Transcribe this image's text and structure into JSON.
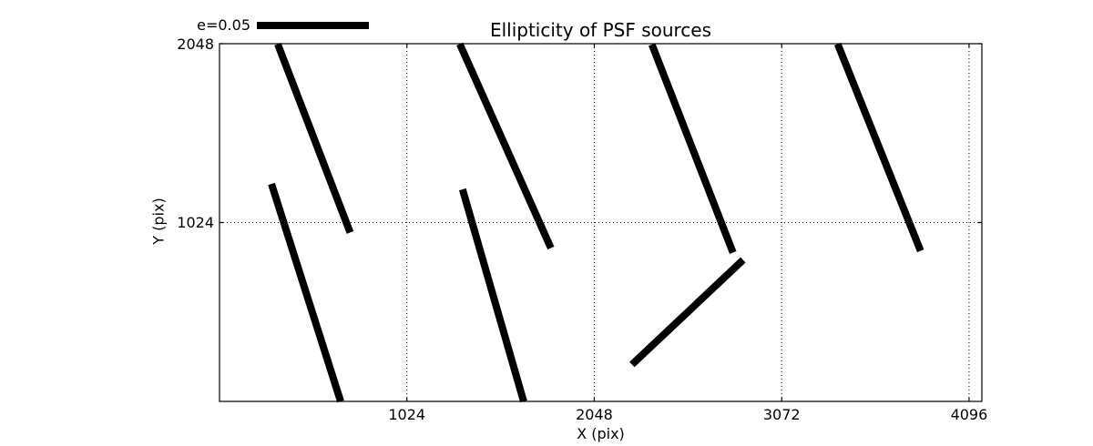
{
  "chart_data": {
    "type": "quiver",
    "title": "Ellipticity of PSF sources",
    "xlabel": "X (pix)",
    "ylabel": "Y (pix)",
    "xlim": [
      0,
      4166
    ],
    "ylim": [
      0,
      2048
    ],
    "xticks": [
      1024,
      2048,
      3072,
      4096
    ],
    "yticks": [
      1024,
      2048
    ],
    "grid": "dotted",
    "legend": {
      "label": "e=0.05",
      "position": "upper-left-outside"
    },
    "colors": {
      "foreground": "#000000",
      "background": "#ffffff"
    },
    "segments": [
      {
        "x1": 318,
        "y1": 2046,
        "x2": 714,
        "y2": 967
      },
      {
        "x1": 284,
        "y1": 1245,
        "x2": 662,
        "y2": 0
      },
      {
        "x1": 1313,
        "y1": 2046,
        "x2": 1811,
        "y2": 878
      },
      {
        "x1": 1328,
        "y1": 1214,
        "x2": 1662,
        "y2": 0
      },
      {
        "x1": 2363,
        "y1": 2043,
        "x2": 2806,
        "y2": 852
      },
      {
        "x1": 2254,
        "y1": 211,
        "x2": 2861,
        "y2": 810
      },
      {
        "x1": 3378,
        "y1": 2046,
        "x2": 3831,
        "y2": 862
      }
    ]
  }
}
